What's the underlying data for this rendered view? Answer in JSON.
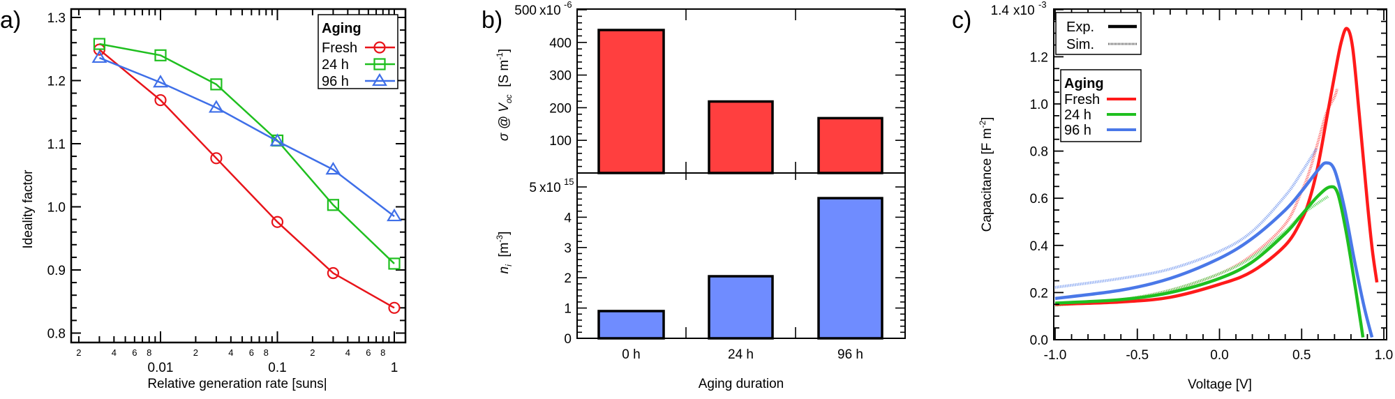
{
  "chart_data": [
    {
      "panel_label": "a)",
      "type": "line",
      "title": "",
      "xlabel": "Relative generation rate [suns|",
      "ylabel": "Ideality factor",
      "xscale": "log",
      "xlim": [
        0.0017,
        1.3
      ],
      "ylim": [
        0.79,
        1.31
      ],
      "x_major_ticks": [
        {
          "v": 0.01,
          "label": "0.01"
        },
        {
          "v": 0.1,
          "label": "0.1"
        },
        {
          "v": 1,
          "label": "1"
        }
      ],
      "x_minor_labels": [
        "2",
        "4",
        "6",
        "8"
      ],
      "y_ticks": [
        {
          "v": 0.8,
          "label": "0.8"
        },
        {
          "v": 0.9,
          "label": "0.9"
        },
        {
          "v": 1.0,
          "label": "1.0"
        },
        {
          "v": 1.1,
          "label": "1.1"
        },
        {
          "v": 1.2,
          "label": "1.2"
        },
        {
          "v": 1.3,
          "label": "1.3"
        }
      ],
      "legend": {
        "title": "Aging",
        "placement": "top-right"
      },
      "x": [
        0.003,
        0.01,
        0.03,
        0.1,
        0.3,
        1
      ],
      "series": [
        {
          "name": "Fresh",
          "color": "#e8141a",
          "marker": "circle",
          "values": [
            1.249,
            1.169,
            1.077,
            0.976,
            0.895,
            0.84
          ]
        },
        {
          "name": "24 h",
          "color": "#1fbf1f",
          "marker": "square",
          "values": [
            1.258,
            1.24,
            1.194,
            1.105,
            1.003,
            0.91
          ]
        },
        {
          "name": "96 h",
          "color": "#3f6fe8",
          "marker": "triangle",
          "values": [
            1.236,
            1.197,
            1.157,
            1.104,
            1.059,
            0.985
          ]
        }
      ]
    },
    {
      "panel_label": "b)",
      "type": "bar",
      "xlabel": "Aging duration",
      "categories": [
        "0 h",
        "24 h",
        "96 h"
      ],
      "subplots": [
        {
          "name": "conductivity",
          "ylabel_parts": [
            "σ @ V",
            "oc",
            "  [S m",
            "-1",
            "]"
          ],
          "ylim": [
            0,
            500
          ],
          "y_ticks": [
            "100",
            "200",
            "300",
            "400",
            "500"
          ],
          "top_tick_exponent": "x10",
          "top_tick_exponent_power": "-6",
          "scale": "1e-6",
          "values": [
            438,
            219,
            168
          ],
          "color": "#ff3f3f"
        },
        {
          "name": "ion-density",
          "ylabel_parts": [
            "n",
            "i",
            "  [m",
            "-3",
            "]"
          ],
          "ylim": [
            0,
            5
          ],
          "y_ticks": [
            "0",
            "1",
            "2",
            "3",
            "4",
            "5"
          ],
          "top_tick_exponent": "x10",
          "top_tick_exponent_power": "15",
          "scale": "1e15",
          "values": [
            0.9,
            2.05,
            4.63
          ],
          "color": "#6f8cff"
        }
      ]
    },
    {
      "panel_label": "c)",
      "type": "line",
      "xlabel": "Voltage [V]",
      "ylabel": "Capacitance [F m",
      "ylabel_sup": "-2",
      "ylabel_end": "]",
      "xlim": [
        -1.0,
        1.0
      ],
      "ylim": [
        0.0,
        1.4
      ],
      "y_scale_note": "x10",
      "y_scale_power": "-3",
      "x_ticks": [
        "-1.0",
        "-0.5",
        "0.0",
        "0.5",
        "1.0"
      ],
      "y_ticks": [
        "0.0",
        "0.2",
        "0.4",
        "0.6",
        "0.8",
        "1.0",
        "1.2",
        "1.4"
      ],
      "legend_style": {
        "entries": [
          {
            "name": "Exp.",
            "style": "solid"
          },
          {
            "name": "Sim.",
            "style": "dotted"
          }
        ],
        "placement": "top-left"
      },
      "legend_aging": {
        "title": "Aging",
        "entries": [
          {
            "name": "Fresh",
            "color": "#ff1a1a"
          },
          {
            "name": "24 h",
            "color": "#1fbf1f"
          },
          {
            "name": "96 h",
            "color": "#4a78e8"
          }
        ],
        "placement": "top-left"
      },
      "series": [
        {
          "name": "Fresh Exp.",
          "color": "#ff1a1a",
          "style": "solid",
          "x": [
            -1.0,
            -0.6,
            -0.3,
            0.0,
            0.2,
            0.4,
            0.5,
            0.55,
            0.6,
            0.65,
            0.7,
            0.74,
            0.775,
            0.81,
            0.85,
            0.9,
            0.93,
            0.958
          ],
          "y": [
            0.15,
            0.16,
            0.18,
            0.235,
            0.29,
            0.4,
            0.51,
            0.6,
            0.74,
            0.93,
            1.12,
            1.26,
            1.32,
            1.24,
            0.96,
            0.58,
            0.38,
            0.243
          ]
        },
        {
          "name": "Fresh Sim.",
          "color": "#ff6060",
          "style": "dotted",
          "x": [
            -1.0,
            -0.6,
            -0.3,
            0.0,
            0.2,
            0.4,
            0.5,
            0.55,
            0.6,
            0.65,
            0.7,
            0.716
          ],
          "y": [
            0.148,
            0.17,
            0.21,
            0.28,
            0.36,
            0.49,
            0.63,
            0.72,
            0.84,
            0.96,
            1.03,
            1.065
          ]
        },
        {
          "name": "24 h Exp.",
          "color": "#1fbf1f",
          "style": "solid",
          "x": [
            -1.0,
            -0.6,
            -0.3,
            0.0,
            0.2,
            0.4,
            0.5,
            0.6,
            0.673,
            0.72,
            0.77,
            0.82,
            0.86,
            0.873
          ],
          "y": [
            0.155,
            0.17,
            0.2,
            0.26,
            0.33,
            0.45,
            0.53,
            0.61,
            0.648,
            0.62,
            0.46,
            0.25,
            0.07,
            0.01
          ]
        },
        {
          "name": "24 h Sim.",
          "color": "#55d055",
          "style": "dotted",
          "x": [
            -1.0,
            -0.6,
            -0.3,
            0.0,
            0.2,
            0.4,
            0.5,
            0.6,
            0.66
          ],
          "y": [
            0.146,
            0.17,
            0.21,
            0.28,
            0.35,
            0.46,
            0.53,
            0.58,
            0.607
          ]
        },
        {
          "name": "96 h Exp.",
          "color": "#4a78e8",
          "style": "solid",
          "x": [
            -1.0,
            -0.6,
            -0.3,
            0.0,
            0.2,
            0.4,
            0.5,
            0.6,
            0.648,
            0.7,
            0.76,
            0.82,
            0.88,
            0.928
          ],
          "y": [
            0.175,
            0.21,
            0.26,
            0.345,
            0.43,
            0.55,
            0.63,
            0.72,
            0.75,
            0.72,
            0.56,
            0.34,
            0.14,
            0.01
          ]
        },
        {
          "name": "96 h Sim.",
          "color": "#7a9cf0",
          "style": "dotted",
          "x": [
            -1.0,
            -0.6,
            -0.3,
            0.0,
            0.2,
            0.4,
            0.5,
            0.59
          ],
          "y": [
            0.222,
            0.26,
            0.3,
            0.375,
            0.46,
            0.61,
            0.71,
            0.81
          ]
        }
      ]
    }
  ]
}
